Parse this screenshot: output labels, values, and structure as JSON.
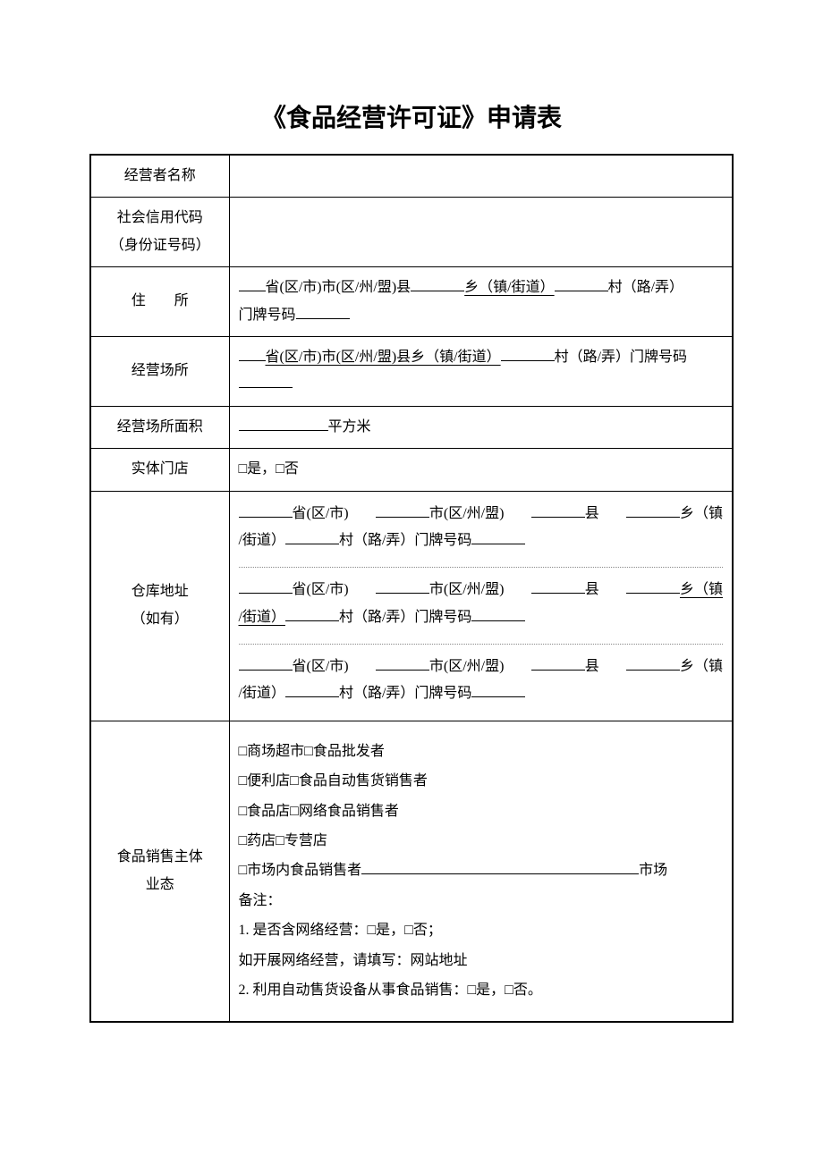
{
  "title": "《食品经营许可证》申请表",
  "rows": {
    "operator_name": {
      "label": "经营者名称"
    },
    "credit_code": {
      "label_l1": "社会信用代码",
      "label_l2": "（身份证号码）"
    },
    "residence": {
      "label": "住　　所",
      "seg_province": "省(区/市)市(区/州/盟)县",
      "seg_township": "乡（镇/街道）",
      "seg_village": "村（路/弄）",
      "seg_doorplate": "门牌号码"
    },
    "biz_place": {
      "label": "经营场所",
      "seg_province": "省(区/市)市(区/州/盟)县乡（镇/街道）",
      "seg_village": "村（路/弄）门牌号码"
    },
    "biz_area": {
      "label": "经营场所面积",
      "unit": "平方米"
    },
    "physical_store": {
      "label": "实体门店",
      "opt_yes": "□是，",
      "opt_no": "□否"
    },
    "warehouse": {
      "label_l1": "仓库地址",
      "label_l2": "（如有）",
      "seg_province": "省(区/市)",
      "seg_city": "市(区/州/盟)",
      "seg_county": "县",
      "seg_township": "乡（镇",
      "seg_street": "/街道）",
      "seg_village": "村（路/弄）门牌号码"
    },
    "biz_type": {
      "label_l1": "食品销售主体",
      "label_l2": "业态",
      "opt1": "□商场超市□食品批发者",
      "opt2": "□便利店□食品自动售货销售者",
      "opt3": "□食品店□网络食品销售者",
      "opt4": "□药店□专营店",
      "opt5_pre": "□市场内食品销售者",
      "opt5_suf": "市场",
      "note_header": "备注：",
      "note1": "1. 是否含网络经营：□是，□否；",
      "note1b": "如开展网络经营，请填写：网站地址",
      "note2": "2. 利用自动售货设备从事食品销售：□是，□否。"
    }
  }
}
